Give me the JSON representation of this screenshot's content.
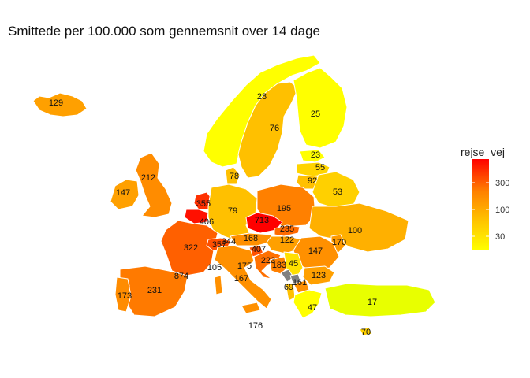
{
  "title": "Smittede per 100.000 som gennemsnit over 14 dage",
  "legend": {
    "title": "rejse_vej",
    "ticks": [
      "300",
      "100",
      "30"
    ],
    "colors": [
      "#ff0000",
      "#ff8000",
      "#ffbf00",
      "#ffff00"
    ]
  },
  "values": {
    "iceland": "129",
    "norway": "28",
    "sweden": "76",
    "finland": "25",
    "estonia": "23",
    "latvia": "55",
    "lithuania": "92",
    "belarus": "53",
    "ireland": "147",
    "uk": "212",
    "denmark": "78",
    "netherlands": "355",
    "belgium": "406",
    "luxembourg": "406",
    "germany": "79",
    "poland": "195",
    "czechia": "713",
    "slovakia": "235",
    "ukraine": "100",
    "moldova": "170",
    "france": "322",
    "switzerland": "357",
    "liechtenstein": "344",
    "austria": "168",
    "hungary": "122",
    "romania": "147",
    "slovenia": "407",
    "croatia": "223",
    "bosnia": "183",
    "serbia": "45",
    "montenegro": "69",
    "kosovo": "161",
    "bulgaria": "123",
    "italy": "175",
    "monaco": "105",
    "corsica": "167",
    "andorra": "874",
    "spain": "231",
    "portugal": "173",
    "greece": "47",
    "turkey": "17",
    "cyprus": "70",
    "malta": "176"
  }
}
